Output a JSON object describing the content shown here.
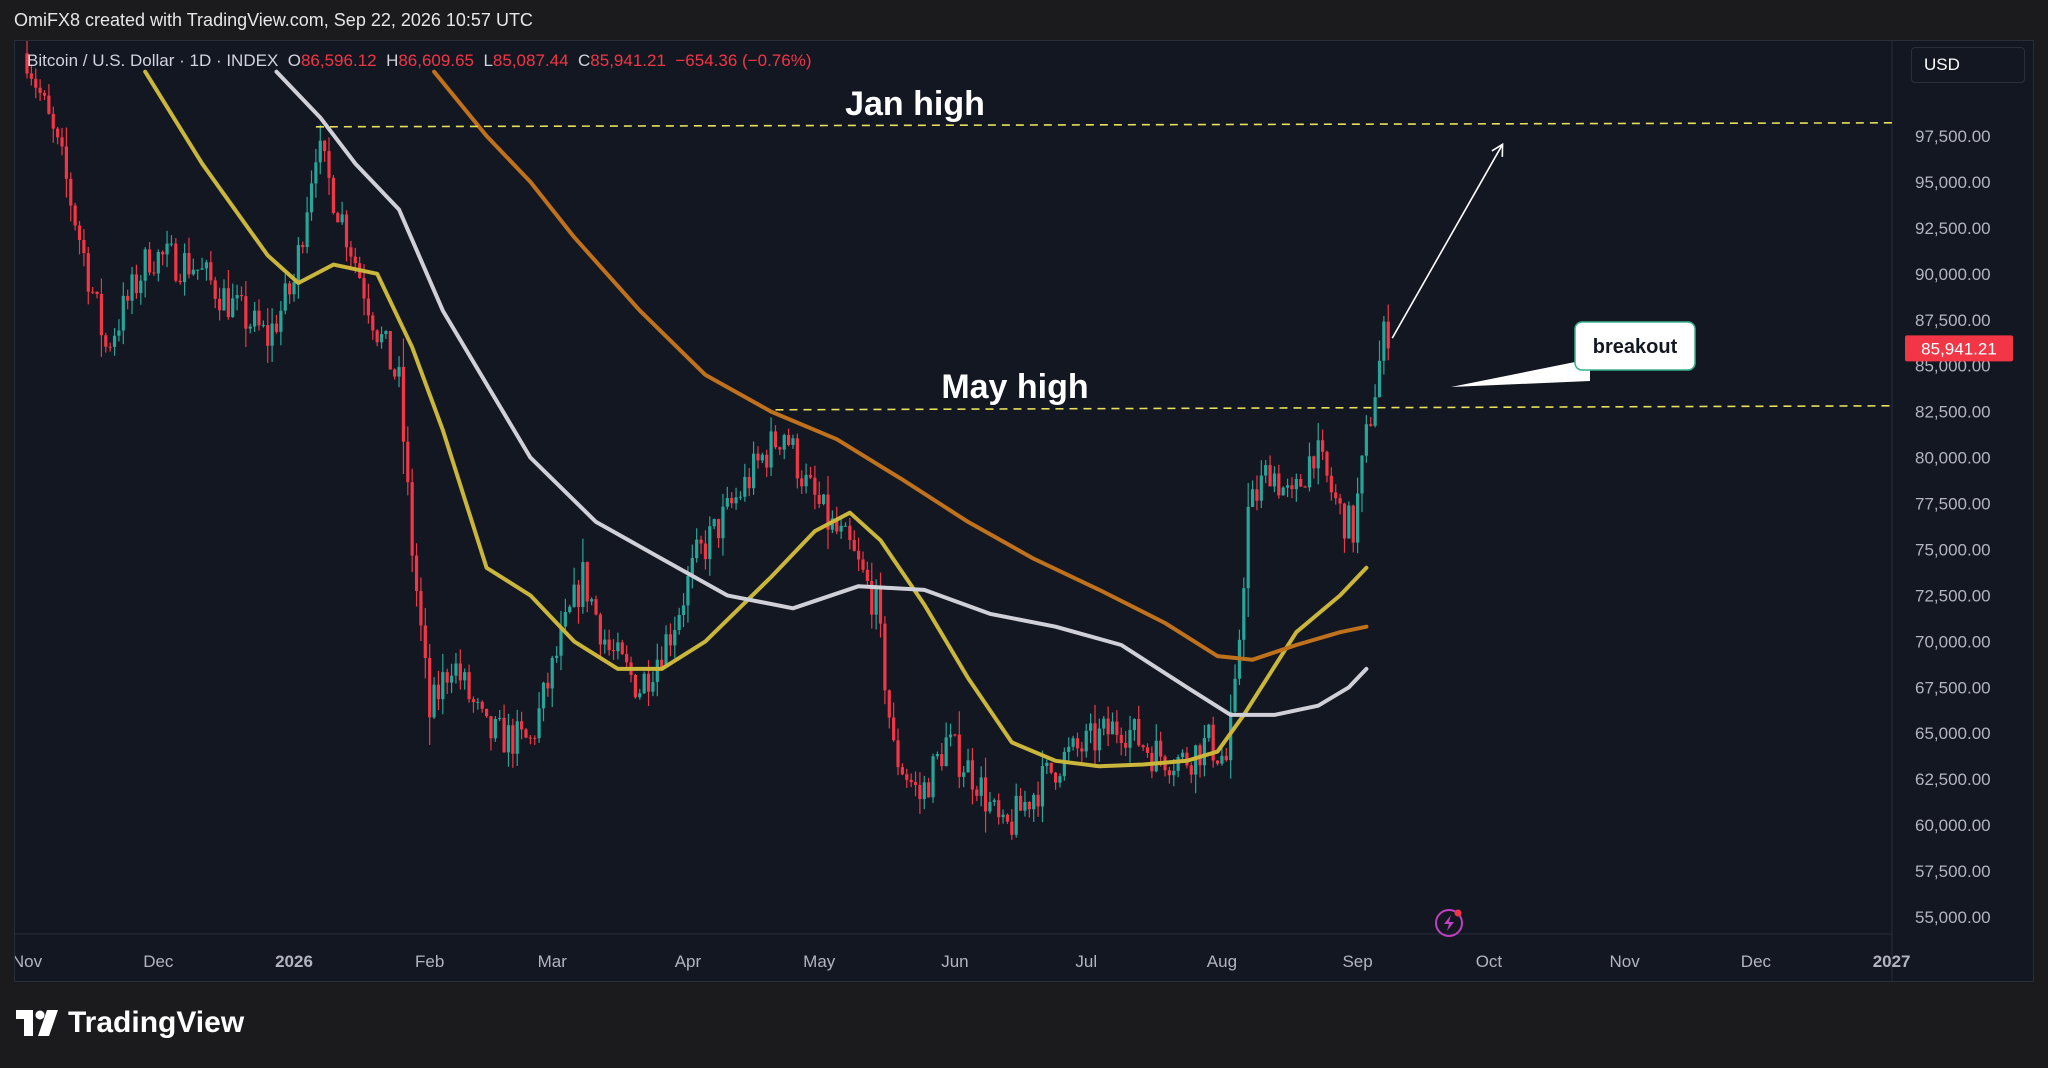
{
  "header": {
    "credit": "OmiFX8 created with TradingView.com, Sep 22, 2026 10:57 UTC"
  },
  "symbol": {
    "name": "Bitcoin / U.S. Dollar · 1D · INDEX",
    "open_label": "O",
    "open": "86,596.12",
    "high_label": "H",
    "high": "86,609.65",
    "low_label": "L",
    "low": "85,087.44",
    "close_label": "C",
    "close": "85,941.21",
    "change": "−654.36 (−0.76%)"
  },
  "currency": "USD",
  "branding": {
    "name": "TradingView"
  },
  "colors": {
    "background": "#131722",
    "up_candle": "#26a69a",
    "down_candle": "#f23645",
    "ma_fast": "#c9b63a",
    "ma_mid": "#d0d0d8",
    "ma_slow": "#c0711c",
    "level_line": "#e8e05a",
    "price_tag": "#f23645"
  },
  "chart_data": {
    "type": "candlestick",
    "x_tick_labels": [
      "Nov",
      "Dec",
      "2026",
      "Feb",
      "Mar",
      "Apr",
      "May",
      "Jun",
      "Jul",
      "Aug",
      "Sep",
      "Oct",
      "Nov",
      "Dec",
      "2027"
    ],
    "y_tick_labels": [
      "97,500.00",
      "95,000.00",
      "92,500.00",
      "90,000.00",
      "87,500.00",
      "85,000.00",
      "82,500.00",
      "80,000.00",
      "77,500.00",
      "75,000.00",
      "72,500.00",
      "70,000.00",
      "67,500.00",
      "65,000.00",
      "62,500.00",
      "60,000.00",
      "57,500.00",
      "55,000.00"
    ],
    "ylim": [
      54000,
      101000
    ],
    "y_axis": "right",
    "grid": false,
    "last_price": 85941.21,
    "last_price_label": "85,941.21",
    "price_points": [
      {
        "day": 0,
        "price": 102000
      },
      {
        "day": 8,
        "price": 96000
      },
      {
        "day": 18,
        "price": 86000
      },
      {
        "day": 28,
        "price": 91000
      },
      {
        "day": 38,
        "price": 90500
      },
      {
        "day": 48,
        "price": 88000
      },
      {
        "day": 55,
        "price": 86500
      },
      {
        "day": 61,
        "price": 89500
      },
      {
        "day": 66,
        "price": 97000
      },
      {
        "day": 72,
        "price": 93000
      },
      {
        "day": 80,
        "price": 87000
      },
      {
        "day": 85,
        "price": 84000
      },
      {
        "day": 88,
        "price": 75000
      },
      {
        "day": 92,
        "price": 66000
      },
      {
        "day": 97,
        "price": 69000
      },
      {
        "day": 105,
        "price": 65000
      },
      {
        "day": 115,
        "price": 64500
      },
      {
        "day": 122,
        "price": 70000
      },
      {
        "day": 127,
        "price": 73500
      },
      {
        "day": 133,
        "price": 69500
      },
      {
        "day": 140,
        "price": 67500
      },
      {
        "day": 147,
        "price": 70500
      },
      {
        "day": 153,
        "price": 74500
      },
      {
        "day": 160,
        "price": 77000
      },
      {
        "day": 168,
        "price": 80000
      },
      {
        "day": 173,
        "price": 81500
      },
      {
        "day": 178,
        "price": 78500
      },
      {
        "day": 183,
        "price": 76500
      },
      {
        "day": 188,
        "price": 75000
      },
      {
        "day": 194,
        "price": 72000
      },
      {
        "day": 198,
        "price": 64000
      },
      {
        "day": 204,
        "price": 61500
      },
      {
        "day": 210,
        "price": 64500
      },
      {
        "day": 217,
        "price": 62500
      },
      {
        "day": 223,
        "price": 59500
      },
      {
        "day": 229,
        "price": 61500
      },
      {
        "day": 236,
        "price": 63500
      },
      {
        "day": 243,
        "price": 64500
      },
      {
        "day": 250,
        "price": 65500
      },
      {
        "day": 257,
        "price": 64000
      },
      {
        "day": 264,
        "price": 63500
      },
      {
        "day": 270,
        "price": 64500
      },
      {
        "day": 274,
        "price": 63500
      },
      {
        "day": 276,
        "price": 67000
      },
      {
        "day": 279,
        "price": 77000
      },
      {
        "day": 284,
        "price": 79500
      },
      {
        "day": 289,
        "price": 77500
      },
      {
        "day": 294,
        "price": 80500
      },
      {
        "day": 300,
        "price": 77000
      },
      {
        "day": 303,
        "price": 76000
      },
      {
        "day": 306,
        "price": 81000
      },
      {
        "day": 310,
        "price": 86500
      },
      {
        "day": 311,
        "price": 85941
      }
    ],
    "series": [
      {
        "key": "ma_fast",
        "points": [
          [
            27,
            101000
          ],
          [
            40,
            96000
          ],
          [
            55,
            91000
          ],
          [
            62,
            89500
          ],
          [
            70,
            90500
          ],
          [
            80,
            90000
          ],
          [
            88,
            86000
          ],
          [
            95,
            81500
          ],
          [
            105,
            74000
          ],
          [
            115,
            72500
          ],
          [
            125,
            70000
          ],
          [
            135,
            68500
          ],
          [
            145,
            68500
          ],
          [
            155,
            70000
          ],
          [
            170,
            73500
          ],
          [
            180,
            76000
          ],
          [
            188,
            77000
          ],
          [
            195,
            75500
          ],
          [
            205,
            72000
          ],
          [
            215,
            68000
          ],
          [
            225,
            64500
          ],
          [
            235,
            63500
          ],
          [
            245,
            63200
          ],
          [
            255,
            63300
          ],
          [
            265,
            63500
          ],
          [
            272,
            64000
          ],
          [
            278,
            66000
          ],
          [
            290,
            70500
          ],
          [
            300,
            72500
          ],
          [
            306,
            74000
          ]
        ]
      },
      {
        "key": "ma_mid",
        "points": [
          [
            57,
            101000
          ],
          [
            67,
            98500
          ],
          [
            75,
            96000
          ],
          [
            85,
            93500
          ],
          [
            95,
            88000
          ],
          [
            105,
            84000
          ],
          [
            115,
            80000
          ],
          [
            130,
            76500
          ],
          [
            145,
            74500
          ],
          [
            160,
            72500
          ],
          [
            175,
            71800
          ],
          [
            190,
            73000
          ],
          [
            205,
            72800
          ],
          [
            220,
            71500
          ],
          [
            235,
            70800
          ],
          [
            250,
            69800
          ],
          [
            265,
            67500
          ],
          [
            275,
            66000
          ],
          [
            285,
            66000
          ],
          [
            295,
            66500
          ],
          [
            302,
            67500
          ],
          [
            306,
            68500
          ]
        ]
      },
      {
        "key": "ma_slow",
        "points": [
          [
            93,
            101000
          ],
          [
            105,
            97500
          ],
          [
            115,
            95000
          ],
          [
            125,
            92000
          ],
          [
            140,
            88000
          ],
          [
            155,
            84500
          ],
          [
            170,
            82500
          ],
          [
            185,
            81000
          ],
          [
            200,
            78800
          ],
          [
            215,
            76500
          ],
          [
            230,
            74500
          ],
          [
            245,
            72800
          ],
          [
            260,
            71000
          ],
          [
            272,
            69200
          ],
          [
            280,
            69000
          ],
          [
            290,
            69800
          ],
          [
            300,
            70500
          ],
          [
            306,
            70800
          ]
        ]
      }
    ],
    "annotations": [
      {
        "type": "level",
        "label": "Jan high",
        "price": 98000,
        "from_day": 66
      },
      {
        "type": "level",
        "label": "May high",
        "price": 82600,
        "from_day": 171
      },
      {
        "type": "arrow",
        "from": [
          311,
          86500
        ],
        "to": [
          337,
          97000
        ]
      },
      {
        "type": "callout",
        "label": "breakout"
      }
    ]
  }
}
